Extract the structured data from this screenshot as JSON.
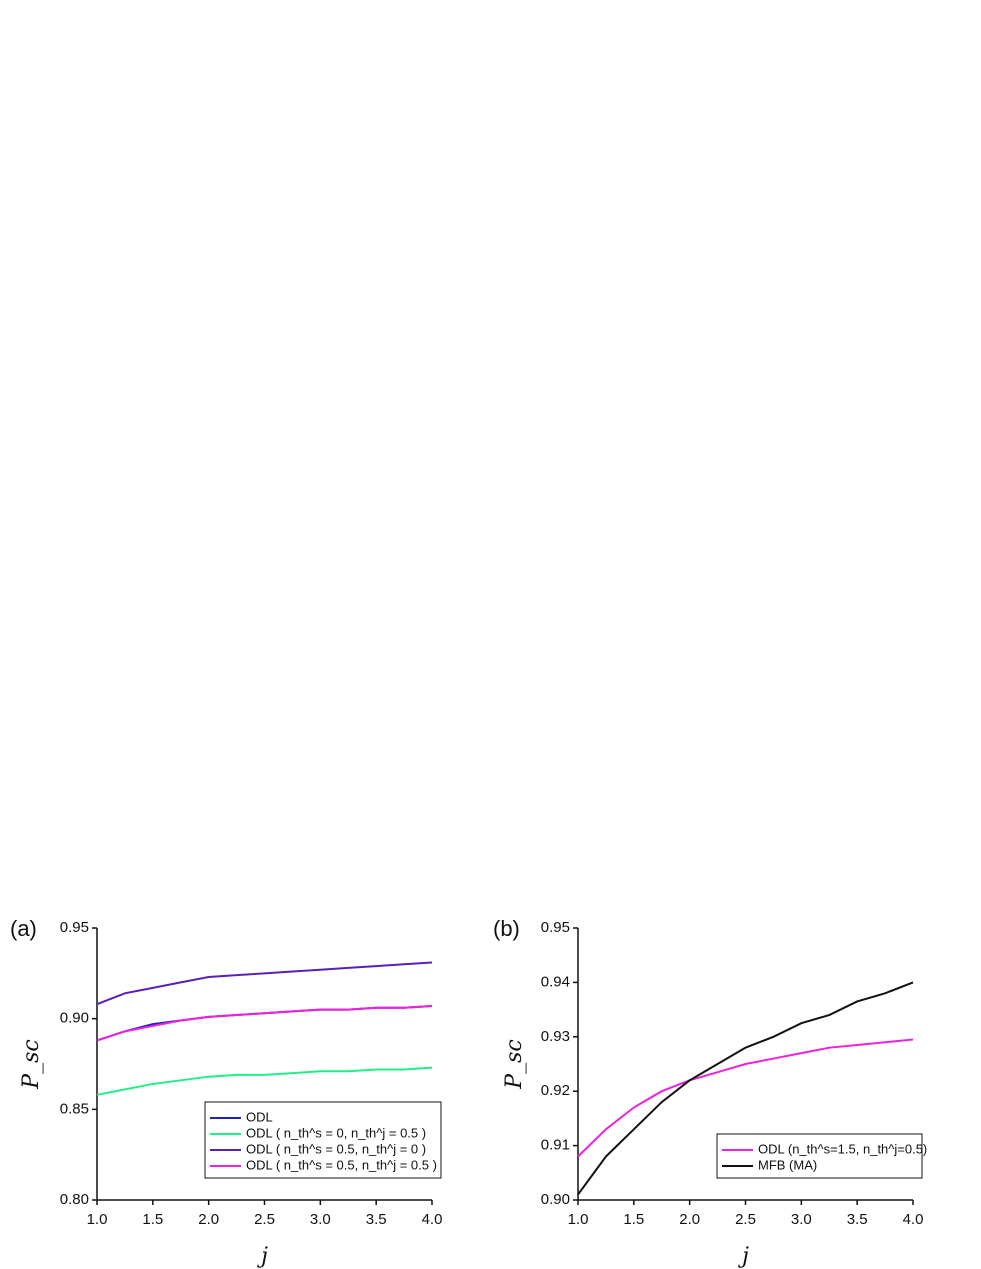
{
  "chart_data": [
    {
      "type": "line",
      "label": "(a)",
      "xlabel": "j",
      "ylabel": "P_sc",
      "x": [
        1.0,
        1.25,
        1.5,
        1.75,
        2.0,
        2.25,
        2.5,
        2.75,
        3.0,
        3.25,
        3.5,
        3.75,
        4.0
      ],
      "xlim": [
        1.0,
        4.0
      ],
      "xticks": [
        {
          "value": 1.0,
          "label": "1.0"
        },
        1.5,
        {
          "value": 2.0,
          "label": "2.0"
        },
        2.5,
        {
          "value": 3.0,
          "label": "3.0"
        },
        3.5,
        {
          "value": 4.0,
          "label": "4.0"
        }
      ],
      "ylim": [
        0.8,
        0.95
      ],
      "yticks": [
        {
          "value": 0.8,
          "label": "0.80"
        },
        0.85,
        {
          "value": 0.9,
          "label": "0.90"
        },
        0.95
      ],
      "legend": "bottom-right",
      "series": [
        {
          "name": "ODL",
          "color": "#1f1fbf",
          "values": [
            0.888,
            0.893,
            0.897,
            0.899,
            0.901,
            0.902,
            0.903,
            0.904,
            0.905,
            0.905,
            0.906,
            0.906,
            0.907
          ]
        },
        {
          "name": "ODL ( n_th^s = 0, n_th^j = 0.5 )",
          "color": "#22ee88",
          "values": [
            0.858,
            0.861,
            0.864,
            0.866,
            0.868,
            0.869,
            0.869,
            0.87,
            0.871,
            0.871,
            0.872,
            0.872,
            0.873
          ]
        },
        {
          "name": "ODL ( n_th^s = 0.5, n_th^j = 0 )",
          "color": "#5a1fb8",
          "values": [
            0.908,
            0.914,
            0.917,
            0.92,
            0.923,
            0.924,
            0.925,
            0.926,
            0.927,
            0.928,
            0.929,
            0.93,
            0.931
          ]
        },
        {
          "name": "ODL ( n_th^s = 0.5, n_th^j = 0.5 )",
          "color": "#ee22dd",
          "values": [
            0.888,
            0.893,
            0.896,
            0.899,
            0.901,
            0.902,
            0.903,
            0.904,
            0.905,
            0.905,
            0.906,
            0.906,
            0.907
          ]
        }
      ]
    },
    {
      "type": "line",
      "label": "(b)",
      "xlabel": "j",
      "ylabel": "P_sc",
      "x": [
        1.0,
        1.25,
        1.5,
        1.75,
        2.0,
        2.25,
        2.5,
        2.75,
        3.0,
        3.25,
        3.5,
        3.75,
        4.0
      ],
      "xlim": [
        1.0,
        4.0
      ],
      "xticks": [
        {
          "value": 1.0,
          "label": "1.0"
        },
        1.5,
        {
          "value": 2.0,
          "label": "2.0"
        },
        2.5,
        {
          "value": 3.0,
          "label": "3.0"
        },
        3.5,
        {
          "value": 4.0,
          "label": "4.0"
        }
      ],
      "ylim": [
        0.9,
        0.95
      ],
      "yticks": [
        {
          "value": 0.9,
          "label": "0.90"
        },
        0.91,
        0.92,
        0.93,
        0.94,
        0.95
      ],
      "legend": "bottom-right",
      "series": [
        {
          "name": "ODL (n_th^s=1.5, n_th^j=0.5)",
          "color": "#ee22dd",
          "values": [
            0.908,
            0.913,
            0.917,
            0.92,
            0.922,
            0.9235,
            0.925,
            0.926,
            0.927,
            0.928,
            0.9285,
            0.929,
            0.9295
          ]
        },
        {
          "name": "MFB (MA)",
          "color": "#111111",
          "values": [
            0.901,
            0.908,
            0.913,
            0.918,
            0.922,
            0.925,
            0.928,
            0.93,
            0.9325,
            0.934,
            0.9365,
            0.938,
            0.94
          ]
        }
      ]
    }
  ]
}
